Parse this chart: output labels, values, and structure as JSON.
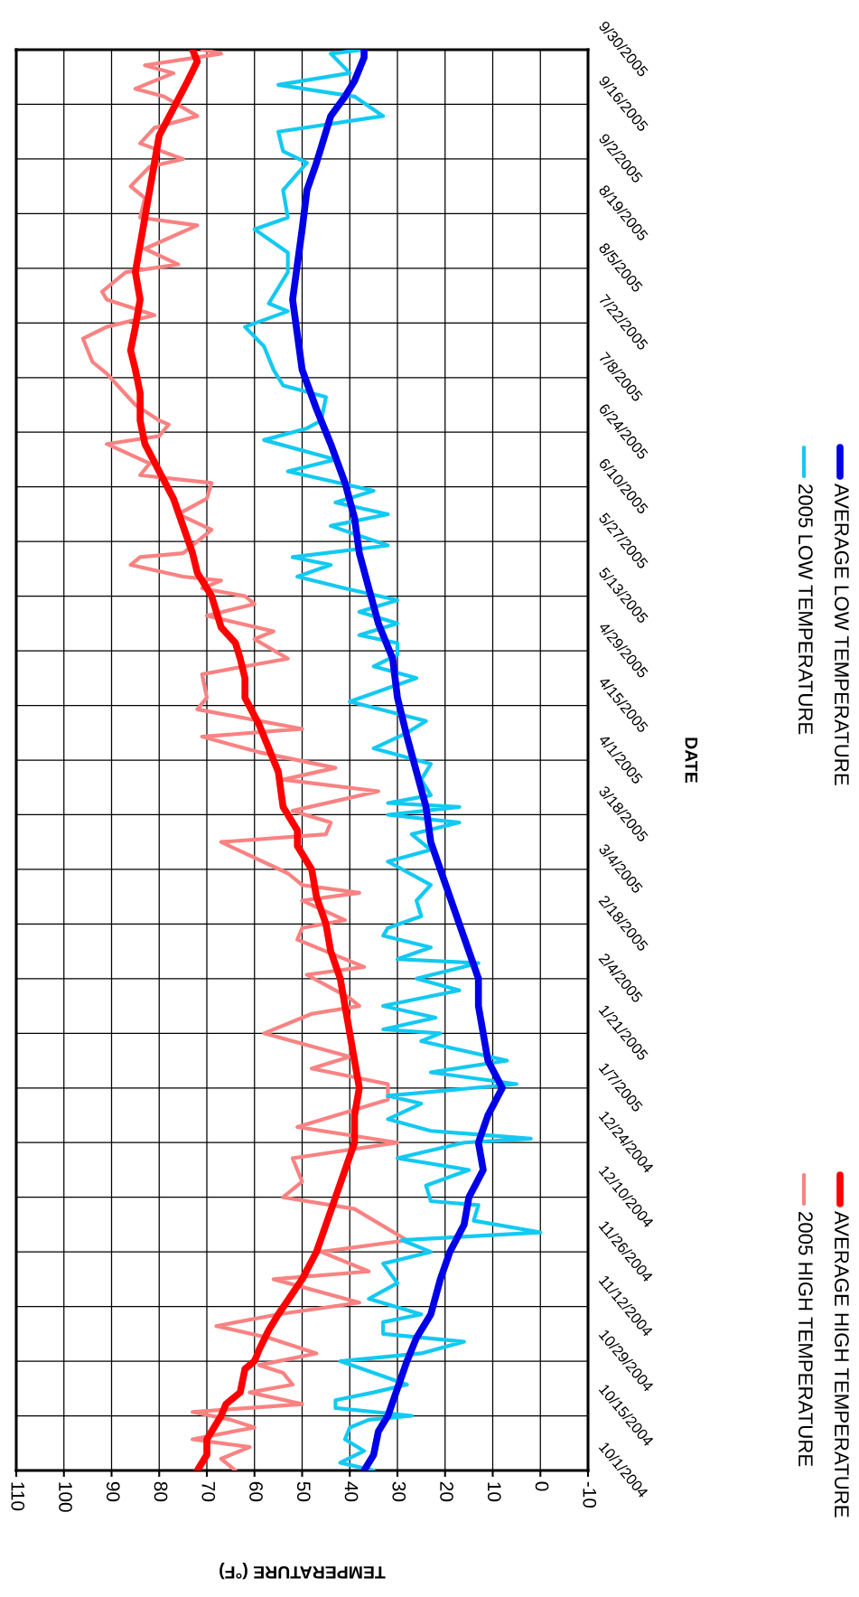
{
  "chart_data": {
    "type": "line",
    "orientation": "horizontal",
    "xlabel": "TEMPERATURE (°F)",
    "ylabel": "DATE",
    "xlim": [
      110,
      -10
    ],
    "xticks": [
      -10,
      0,
      10,
      20,
      30,
      40,
      50,
      60,
      70,
      80,
      90,
      100,
      110
    ],
    "ylim": [
      "2004-10-01",
      "2005-09-30"
    ],
    "yticks": [
      {
        "value": "2004-10-01",
        "label": "10/1/2004"
      },
      {
        "value": "2004-10-15",
        "label": "10/15/2004"
      },
      {
        "value": "2004-10-29",
        "label": "10/29/2004"
      },
      {
        "value": "2004-11-12",
        "label": "11/12/2004"
      },
      {
        "value": "2004-11-26",
        "label": "11/26/2004"
      },
      {
        "value": "2004-12-10",
        "label": "12/10/2004"
      },
      {
        "value": "2004-12-24",
        "label": "12/24/2004"
      },
      {
        "value": "2005-01-07",
        "label": "1/7/2005"
      },
      {
        "value": "2005-01-21",
        "label": "1/21/2005"
      },
      {
        "value": "2005-02-04",
        "label": "2/4/2005"
      },
      {
        "value": "2005-02-18",
        "label": "2/18/2005"
      },
      {
        "value": "2005-03-04",
        "label": "3/4/2005"
      },
      {
        "value": "2005-03-18",
        "label": "3/18/2005"
      },
      {
        "value": "2005-04-01",
        "label": "4/1/2005"
      },
      {
        "value": "2005-04-15",
        "label": "4/15/2005"
      },
      {
        "value": "2005-04-29",
        "label": "4/29/2005"
      },
      {
        "value": "2005-05-13",
        "label": "5/13/2005"
      },
      {
        "value": "2005-05-27",
        "label": "5/27/2005"
      },
      {
        "value": "2005-06-10",
        "label": "6/10/2005"
      },
      {
        "value": "2005-06-24",
        "label": "6/24/2005"
      },
      {
        "value": "2005-07-08",
        "label": "7/8/2005"
      },
      {
        "value": "2005-07-22",
        "label": "7/22/2005"
      },
      {
        "value": "2005-08-05",
        "label": "8/5/2005"
      },
      {
        "value": "2005-08-19",
        "label": "8/19/2005"
      },
      {
        "value": "2005-09-02",
        "label": "9/2/2005"
      },
      {
        "value": "2005-09-16",
        "label": "9/16/2005"
      },
      {
        "value": "2005-09-30",
        "label": "9/30/2005"
      }
    ],
    "grid": true,
    "legend": "right",
    "series": [
      {
        "name": "2005 HIGH TEMPERATURE",
        "color": "#f98282",
        "x": [
          "2004-10-01",
          "2004-10-04",
          "2004-10-07",
          "2004-10-09",
          "2004-10-12",
          "2004-10-14",
          "2004-10-16",
          "2004-10-18",
          "2004-10-21",
          "2004-10-23",
          "2004-10-26",
          "2004-10-28",
          "2004-10-31",
          "2004-11-04",
          "2004-11-07",
          "2004-11-10",
          "2004-11-13",
          "2004-11-19",
          "2004-11-21",
          "2004-11-26",
          "2004-11-29",
          "2004-12-07",
          "2004-12-10",
          "2004-12-14",
          "2004-12-20",
          "2004-12-24",
          "2004-12-28",
          "2005-01-04",
          "2005-01-08",
          "2005-01-12",
          "2005-01-15",
          "2005-01-21",
          "2005-01-26",
          "2005-01-28",
          "2005-01-30",
          "2005-02-05",
          "2005-02-07",
          "2005-02-11",
          "2005-02-14",
          "2005-02-17",
          "2005-02-19",
          "2005-02-24",
          "2005-02-26",
          "2005-02-28",
          "2005-03-03",
          "2005-03-11",
          "2005-03-13",
          "2005-03-16",
          "2005-03-19",
          "2005-03-24",
          "2005-03-27",
          "2005-03-30",
          "2005-04-03",
          "2005-04-07",
          "2005-04-09",
          "2005-04-14",
          "2005-04-17",
          "2005-04-23",
          "2005-04-27",
          "2005-05-02",
          "2005-05-04",
          "2005-05-08",
          "2005-05-11",
          "2005-05-13",
          "2005-05-15",
          "2005-05-17",
          "2005-05-18",
          "2005-05-21",
          "2005-05-23",
          "2005-05-24",
          "2005-05-30",
          "2005-06-03",
          "2005-06-07",
          "2005-06-11",
          "2005-06-13",
          "2005-06-16",
          "2005-06-21",
          "2005-06-23",
          "2005-06-26",
          "2005-06-27",
          "2005-07-01",
          "2005-07-05",
          "2005-07-09",
          "2005-07-12",
          "2005-07-18",
          "2005-07-21",
          "2005-07-24",
          "2005-07-26",
          "2005-07-28",
          "2005-07-30",
          "2005-08-04",
          "2005-08-06",
          "2005-08-10",
          "2005-08-16",
          "2005-08-18",
          "2005-08-23",
          "2005-08-26",
          "2005-08-31",
          "2005-09-02",
          "2005-09-06",
          "2005-09-10",
          "2005-09-13",
          "2005-09-18",
          "2005-09-20",
          "2005-09-24",
          "2005-09-26",
          "2005-09-29",
          "2005-09-30"
        ],
        "values": [
          64,
          67,
          61,
          73,
          60,
          65,
          73,
          50,
          61,
          52,
          54,
          59,
          47,
          57,
          68,
          55,
          38,
          56,
          36,
          46,
          28,
          39,
          54,
          50,
          52,
          30,
          51,
          32,
          32,
          48,
          40,
          58,
          48,
          38,
          40,
          49,
          37,
          45,
          51,
          50,
          41,
          50,
          38,
          50,
          53,
          67,
          45,
          44,
          52,
          34,
          54,
          43,
          59,
          71,
          50,
          72,
          70,
          71,
          53,
          60,
          56,
          70,
          60,
          62,
          71,
          67,
          75,
          86,
          84,
          75,
          69,
          76,
          70,
          69,
          84,
          82,
          91,
          80,
          78,
          80,
          85,
          88,
          91,
          94,
          96,
          91,
          81,
          86,
          91,
          92,
          87,
          76,
          83,
          72,
          84,
          83,
          86,
          82,
          75,
          84,
          81,
          72,
          79,
          85,
          77,
          83,
          67,
          71
        ]
      },
      {
        "name": "AVERAGE HIGH TEMPERATURE",
        "color": "#ff0000",
        "x": [
          "2004-10-01",
          "2004-10-03",
          "2004-10-05",
          "2004-10-09",
          "2004-10-15",
          "2004-10-18",
          "2004-10-21",
          "2004-10-27",
          "2004-10-29",
          "2004-11-01",
          "2004-11-06",
          "2004-11-10",
          "2004-11-19",
          "2004-11-26",
          "2004-12-03",
          "2004-12-10",
          "2004-12-17",
          "2004-12-24",
          "2004-12-31",
          "2005-01-07",
          "2005-01-14",
          "2005-01-21",
          "2005-01-28",
          "2005-02-04",
          "2005-02-11",
          "2005-02-18",
          "2005-02-25",
          "2005-03-04",
          "2005-03-10",
          "2005-03-14",
          "2005-03-20",
          "2005-03-29",
          "2005-04-04",
          "2005-04-10",
          "2005-04-17",
          "2005-04-22",
          "2005-04-27",
          "2005-05-01",
          "2005-05-05",
          "2005-05-13",
          "2005-05-19",
          "2005-05-24",
          "2005-05-31",
          "2005-06-07",
          "2005-06-14",
          "2005-06-21",
          "2005-06-27",
          "2005-07-04",
          "2005-07-10",
          "2005-07-15",
          "2005-07-21",
          "2005-07-28",
          "2005-08-04",
          "2005-08-11",
          "2005-08-18",
          "2005-08-25",
          "2005-09-01",
          "2005-09-08",
          "2005-09-15",
          "2005-09-22",
          "2005-09-27",
          "2005-09-30"
        ],
        "values": [
          72,
          71,
          70,
          70,
          67,
          66,
          63,
          62,
          60,
          59,
          57,
          55,
          50,
          47,
          45,
          43,
          41,
          39,
          39,
          38,
          39,
          40,
          41,
          42,
          44,
          45,
          47,
          48,
          51,
          51,
          54,
          55,
          57,
          59,
          62,
          62,
          63,
          64,
          67,
          69,
          72,
          73,
          75,
          77,
          80,
          83,
          84,
          84,
          85,
          86,
          85,
          84,
          85,
          84,
          83,
          82,
          81,
          80,
          77,
          74,
          72,
          73
        ]
      },
      {
        "name": "2005 LOW TEMPERATURE",
        "color": "#13c9f2",
        "x": [
          "2004-10-01",
          "2004-10-03",
          "2004-10-06",
          "2004-10-09",
          "2004-10-12",
          "2004-10-14",
          "2004-10-15",
          "2004-10-17",
          "2004-10-19",
          "2004-10-21",
          "2004-10-23",
          "2004-10-29",
          "2004-10-31",
          "2004-11-03",
          "2004-11-05",
          "2004-11-08",
          "2004-11-10",
          "2004-11-14",
          "2004-11-18",
          "2004-11-23",
          "2004-11-26",
          "2004-11-29",
          "2004-12-01",
          "2004-12-04",
          "2004-12-08",
          "2004-12-09",
          "2004-12-13",
          "2004-12-17",
          "2004-12-20",
          "2004-12-24",
          "2004-12-25",
          "2004-12-27",
          "2004-12-30",
          "2005-01-03",
          "2005-01-05",
          "2005-01-08",
          "2005-01-11",
          "2005-01-14",
          "2005-01-19",
          "2005-01-21",
          "2005-01-22",
          "2005-01-25",
          "2005-01-28",
          "2005-02-01",
          "2005-02-04",
          "2005-02-08",
          "2005-02-09",
          "2005-02-12",
          "2005-02-15",
          "2005-02-17",
          "2005-02-20",
          "2005-02-24",
          "2005-02-28",
          "2005-03-06",
          "2005-03-09",
          "2005-03-13",
          "2005-03-16",
          "2005-03-18",
          "2005-03-20",
          "2005-03-21",
          "2005-03-23",
          "2005-03-27",
          "2005-03-31",
          "2005-04-04",
          "2005-04-08",
          "2005-04-11",
          "2005-04-16",
          "2005-04-22",
          "2005-04-25",
          "2005-04-28",
          "2005-05-01",
          "2005-05-03",
          "2005-05-06",
          "2005-05-09",
          "2005-05-12",
          "2005-05-15",
          "2005-05-18",
          "2005-05-21",
          "2005-05-23",
          "2005-05-26",
          "2005-05-31",
          "2005-06-03",
          "2005-06-06",
          "2005-06-09",
          "2005-06-14",
          "2005-06-17",
          "2005-06-22",
          "2005-06-25",
          "2005-06-27",
          "2005-07-03",
          "2005-07-06",
          "2005-07-10",
          "2005-07-16",
          "2005-07-21",
          "2005-07-25",
          "2005-07-27",
          "2005-08-04",
          "2005-08-09",
          "2005-08-15",
          "2005-08-18",
          "2005-08-25",
          "2005-09-01",
          "2005-09-04",
          "2005-09-09",
          "2005-09-13",
          "2005-09-18",
          "2005-09-21",
          "2005-09-24",
          "2005-09-29",
          "2005-09-30"
        ],
        "values": [
          35,
          42,
          37,
          41,
          40,
          36,
          27,
          43,
          43,
          35,
          28,
          42,
          25,
          16,
          33,
          33,
          25,
          36,
          30,
          33,
          23,
          29,
          0,
          14,
          13,
          23,
          24,
          15,
          30,
          16,
          2,
          23,
          32,
          25,
          32,
          5,
          23,
          7,
          25,
          21,
          33,
          22,
          33,
          17,
          26,
          13,
          30,
          23,
          33,
          32,
          25,
          26,
          23,
          32,
          23,
          27,
          17,
          32,
          17,
          32,
          23,
          25,
          23,
          35,
          28,
          24,
          40,
          26,
          35,
          30,
          30,
          38,
          30,
          38,
          30,
          41,
          51,
          44,
          52,
          32,
          44,
          32,
          43,
          35,
          53,
          43,
          58,
          49,
          46,
          45,
          54,
          56,
          58,
          62,
          53,
          57,
          53,
          53,
          60,
          53,
          54,
          49,
          54,
          55,
          33,
          39,
          55,
          40,
          44,
          37
        ]
      },
      {
        "name": "AVERAGE LOW TEMPERATURE",
        "color": "#0000e8",
        "x": [
          "2004-10-01",
          "2004-10-05",
          "2004-10-11",
          "2004-10-15",
          "2004-10-22",
          "2004-10-29",
          "2004-11-04",
          "2004-11-10",
          "2004-11-19",
          "2004-11-26",
          "2004-12-03",
          "2004-12-10",
          "2004-12-17",
          "2004-12-24",
          "2004-12-31",
          "2005-01-07",
          "2005-01-14",
          "2005-01-21",
          "2005-01-28",
          "2005-02-04",
          "2005-02-11",
          "2005-02-18",
          "2005-02-25",
          "2005-03-04",
          "2005-03-11",
          "2005-03-20",
          "2005-03-29",
          "2005-04-07",
          "2005-04-17",
          "2005-04-27",
          "2005-05-06",
          "2005-05-15",
          "2005-05-24",
          "2005-06-02",
          "2005-06-11",
          "2005-06-21",
          "2005-06-30",
          "2005-07-10",
          "2005-07-19",
          "2005-07-28",
          "2005-08-06",
          "2005-08-15",
          "2005-08-25",
          "2005-09-01",
          "2005-09-13",
          "2005-09-18",
          "2005-09-22",
          "2005-09-28",
          "2005-09-30"
        ],
        "values": [
          37,
          35,
          34,
          32,
          30,
          28,
          26,
          23,
          21,
          19,
          16,
          15,
          12,
          13,
          11,
          8,
          11,
          12,
          13,
          13,
          15,
          17,
          19,
          21,
          23,
          24,
          26,
          28,
          30,
          31,
          34,
          36,
          38,
          39,
          41,
          44,
          47,
          50,
          51,
          52,
          51,
          50,
          49,
          47,
          44,
          41,
          39,
          37,
          37
        ]
      }
    ]
  }
}
